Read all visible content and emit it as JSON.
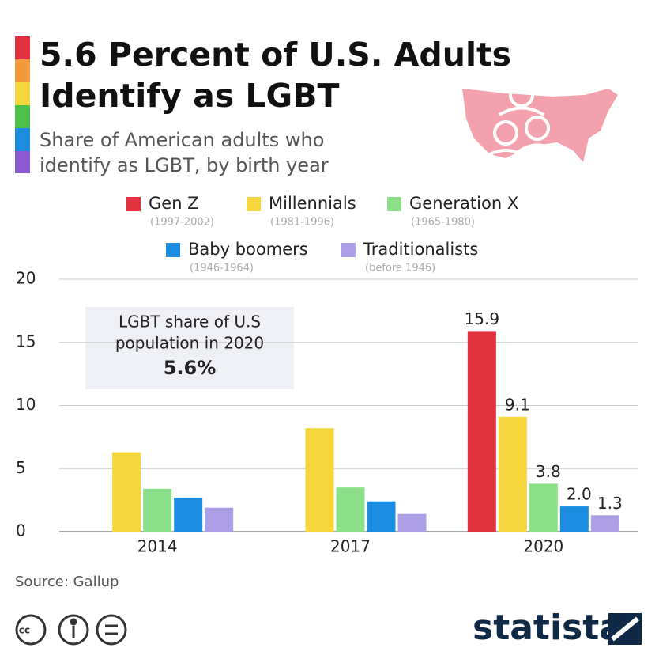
{
  "chart_data": {
    "type": "bar",
    "title": [
      "5.6 Percent of U.S. Adults",
      "Identify as LGBT"
    ],
    "subtitle": [
      "Share of American adults who",
      "identify as LGBT, by birth year"
    ],
    "categories": [
      "2014",
      "2017",
      "2020"
    ],
    "series": [
      {
        "name": "Gen Z",
        "years": "(1997-2002)",
        "color": "#e0313f",
        "values": [
          null,
          null,
          15.9
        ],
        "value_labels": [
          null,
          null,
          "15.9"
        ]
      },
      {
        "name": "Millennials",
        "years": "(1981-1996)",
        "color": "#f5d63d",
        "values": [
          6.3,
          8.2,
          9.1
        ],
        "value_labels": [
          null,
          null,
          "9.1"
        ]
      },
      {
        "name": "Generation X",
        "years": "(1965-1980)",
        "color": "#8de08a",
        "values": [
          3.4,
          3.5,
          3.8
        ],
        "value_labels": [
          null,
          null,
          "3.8"
        ]
      },
      {
        "name": "Baby boomers",
        "years": "(1946-1964)",
        "color": "#1a8de0",
        "values": [
          2.7,
          2.4,
          2.0
        ],
        "value_labels": [
          null,
          null,
          "2.0"
        ]
      },
      {
        "name": "Traditionalists",
        "years": "(before 1946)",
        "color": "#ad9fe6",
        "values": [
          1.9,
          1.4,
          1.3
        ],
        "value_labels": [
          null,
          null,
          "1.3"
        ]
      }
    ],
    "ylim": [
      0,
      20
    ],
    "yticks": [
      0,
      5,
      10,
      15,
      20
    ],
    "grid": true,
    "annotation": [
      "LGBT share of U.S",
      "population in 2020",
      "5.6%"
    ],
    "source": "Source: Gallup",
    "logo": "statista"
  }
}
